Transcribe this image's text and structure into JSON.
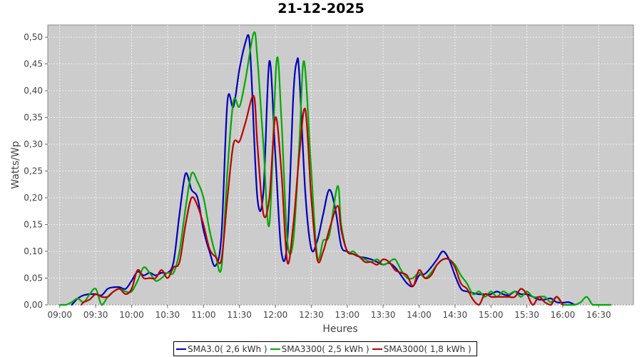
{
  "chart_data": {
    "type": "line",
    "title": "21-12-2025",
    "xlabel": "Heures",
    "ylabel": "Watts/Wp",
    "xlim": [
      "08:50",
      "16:59"
    ],
    "ylim": [
      0,
      0.5227
    ],
    "grid": true,
    "legend_position": "bottom",
    "x_ticks": [
      "09:00",
      "09:30",
      "10:00",
      "10:30",
      "11:00",
      "11:30",
      "12:00",
      "12:30",
      "13:00",
      "13:30",
      "14:00",
      "14:30",
      "15:00",
      "15:30",
      "16:00",
      "16:30"
    ],
    "y_ticks": [
      0,
      0.05,
      0.1,
      0.15,
      0.2,
      0.25,
      0.3,
      0.35,
      0.4,
      0.45,
      0.5
    ],
    "y_tick_labels": [
      "0,00",
      "0,05",
      "0,10",
      "0,15",
      "0,20",
      "0,25",
      "0,30",
      "0,35",
      "0,40",
      "0,45",
      "0,50"
    ],
    "colors": {
      "plot_background": "#cccccc",
      "grid": "#eeeeee"
    },
    "series": [
      {
        "name": "SMA3.0( 2,6 kWh )",
        "color": "#0000bb",
        "points": [
          [
            "09:10",
            0
          ],
          [
            "09:15",
            0.012
          ],
          [
            "09:20",
            0.018
          ],
          [
            "09:25",
            0.02
          ],
          [
            "09:30",
            0.02
          ],
          [
            "09:35",
            0.018
          ],
          [
            "09:40",
            0.03
          ],
          [
            "09:45",
            0.033
          ],
          [
            "09:50",
            0.033
          ],
          [
            "09:55",
            0.03
          ],
          [
            "10:00",
            0.045
          ],
          [
            "10:05",
            0.062
          ],
          [
            "10:10",
            0.055
          ],
          [
            "10:15",
            0.06
          ],
          [
            "10:20",
            0.055
          ],
          [
            "10:25",
            0.06
          ],
          [
            "10:30",
            0.06
          ],
          [
            "10:35",
            0.08
          ],
          [
            "10:40",
            0.17
          ],
          [
            "10:45",
            0.245
          ],
          [
            "10:50",
            0.215
          ],
          [
            "10:55",
            0.2
          ],
          [
            "11:00",
            0.14
          ],
          [
            "11:05",
            0.1
          ],
          [
            "11:10",
            0.073
          ],
          [
            "11:15",
            0.13
          ],
          [
            "11:20",
            0.38
          ],
          [
            "11:25",
            0.37
          ],
          [
            "11:30",
            0.44
          ],
          [
            "11:35",
            0.49
          ],
          [
            "11:38",
            0.5
          ],
          [
            "11:40",
            0.43
          ],
          [
            "11:45",
            0.2
          ],
          [
            "11:50",
            0.21
          ],
          [
            "11:55",
            0.455
          ],
          [
            "12:00",
            0.28
          ],
          [
            "12:05",
            0.1
          ],
          [
            "12:10",
            0.12
          ],
          [
            "12:15",
            0.39
          ],
          [
            "12:18",
            0.455
          ],
          [
            "12:20",
            0.43
          ],
          [
            "12:25",
            0.21
          ],
          [
            "12:30",
            0.105
          ],
          [
            "12:35",
            0.12
          ],
          [
            "12:40",
            0.17
          ],
          [
            "12:45",
            0.215
          ],
          [
            "12:50",
            0.18
          ],
          [
            "12:55",
            0.11
          ],
          [
            "13:00",
            0.1
          ],
          [
            "13:05",
            0.095
          ],
          [
            "13:10",
            0.09
          ],
          [
            "13:15",
            0.088
          ],
          [
            "13:20",
            0.085
          ],
          [
            "13:25",
            0.08
          ],
          [
            "13:30",
            0.075
          ],
          [
            "13:35",
            0.078
          ],
          [
            "13:40",
            0.07
          ],
          [
            "13:45",
            0.055
          ],
          [
            "13:50",
            0.04
          ],
          [
            "13:55",
            0.035
          ],
          [
            "14:00",
            0.055
          ],
          [
            "14:05",
            0.058
          ],
          [
            "14:10",
            0.07
          ],
          [
            "14:15",
            0.085
          ],
          [
            "14:20",
            0.1
          ],
          [
            "14:25",
            0.085
          ],
          [
            "14:30",
            0.055
          ],
          [
            "14:35",
            0.03
          ],
          [
            "14:40",
            0.025
          ],
          [
            "14:45",
            0.022
          ],
          [
            "14:50",
            0.02
          ],
          [
            "14:55",
            0.02
          ],
          [
            "15:00",
            0.02
          ],
          [
            "15:05",
            0.025
          ],
          [
            "15:10",
            0.02
          ],
          [
            "15:15",
            0.018
          ],
          [
            "15:20",
            0.025
          ],
          [
            "15:25",
            0.02
          ],
          [
            "15:30",
            0.02
          ],
          [
            "15:35",
            0.015
          ],
          [
            "15:40",
            0.01
          ],
          [
            "15:45",
            0.01
          ],
          [
            "15:50",
            0.012
          ],
          [
            "15:55",
            0.005
          ],
          [
            "16:00",
            0.004
          ],
          [
            "16:05",
            0.005
          ],
          [
            "16:10",
            0
          ]
        ]
      },
      {
        "name": "SMA3300( 2,5 kWh )",
        "color": "#00aa00",
        "points": [
          [
            "09:00",
            0
          ],
          [
            "09:05",
            0
          ],
          [
            "09:10",
            0.005
          ],
          [
            "09:15",
            0.012
          ],
          [
            "09:20",
            0.005
          ],
          [
            "09:25",
            0.02
          ],
          [
            "09:30",
            0.03
          ],
          [
            "09:35",
            0.0
          ],
          [
            "09:40",
            0.015
          ],
          [
            "09:45",
            0.025
          ],
          [
            "09:50",
            0.03
          ],
          [
            "09:55",
            0.025
          ],
          [
            "10:00",
            0.025
          ],
          [
            "10:05",
            0.045
          ],
          [
            "10:10",
            0.07
          ],
          [
            "10:15",
            0.06
          ],
          [
            "10:20",
            0.045
          ],
          [
            "10:25",
            0.05
          ],
          [
            "10:30",
            0.06
          ],
          [
            "10:35",
            0.06
          ],
          [
            "10:40",
            0.1
          ],
          [
            "10:45",
            0.18
          ],
          [
            "10:50",
            0.245
          ],
          [
            "10:55",
            0.23
          ],
          [
            "11:00",
            0.2
          ],
          [
            "11:05",
            0.14
          ],
          [
            "11:10",
            0.095
          ],
          [
            "11:15",
            0.07
          ],
          [
            "11:20",
            0.25
          ],
          [
            "11:25",
            0.38
          ],
          [
            "11:30",
            0.37
          ],
          [
            "11:35",
            0.42
          ],
          [
            "11:42",
            0.508
          ],
          [
            "11:45",
            0.46
          ],
          [
            "11:50",
            0.3
          ],
          [
            "11:55",
            0.15
          ],
          [
            "12:01",
            0.455
          ],
          [
            "12:05",
            0.35
          ],
          [
            "12:10",
            0.12
          ],
          [
            "12:15",
            0.12
          ],
          [
            "12:20",
            0.3
          ],
          [
            "12:24",
            0.455
          ],
          [
            "12:30",
            0.25
          ],
          [
            "12:35",
            0.09
          ],
          [
            "12:40",
            0.12
          ],
          [
            "12:45",
            0.13
          ],
          [
            "12:52",
            0.222
          ],
          [
            "12:55",
            0.15
          ],
          [
            "13:00",
            0.1
          ],
          [
            "13:05",
            0.1
          ],
          [
            "13:10",
            0.09
          ],
          [
            "13:15",
            0.085
          ],
          [
            "13:20",
            0.08
          ],
          [
            "13:25",
            0.085
          ],
          [
            "13:30",
            0.075
          ],
          [
            "13:35",
            0.08
          ],
          [
            "13:40",
            0.085
          ],
          [
            "13:45",
            0.065
          ],
          [
            "13:50",
            0.05
          ],
          [
            "13:55",
            0.05
          ],
          [
            "14:00",
            0.06
          ],
          [
            "14:05",
            0.05
          ],
          [
            "14:10",
            0.06
          ],
          [
            "14:15",
            0.075
          ],
          [
            "14:20",
            0.085
          ],
          [
            "14:25",
            0.085
          ],
          [
            "14:30",
            0.075
          ],
          [
            "14:35",
            0.055
          ],
          [
            "14:40",
            0.04
          ],
          [
            "14:45",
            0.02
          ],
          [
            "14:50",
            0.025
          ],
          [
            "14:55",
            0.015
          ],
          [
            "15:00",
            0.025
          ],
          [
            "15:05",
            0.015
          ],
          [
            "15:10",
            0.025
          ],
          [
            "15:15",
            0.02
          ],
          [
            "15:20",
            0.025
          ],
          [
            "15:25",
            0.015
          ],
          [
            "15:30",
            0.025
          ],
          [
            "15:35",
            0.015
          ],
          [
            "15:40",
            0.015
          ],
          [
            "15:45",
            0.015
          ],
          [
            "15:50",
            0.005
          ],
          [
            "15:55",
            0.015
          ],
          [
            "16:00",
            0
          ],
          [
            "16:05",
            0
          ],
          [
            "16:10",
            0
          ],
          [
            "16:15",
            0.005
          ],
          [
            "16:20",
            0.015
          ],
          [
            "16:25",
            0
          ],
          [
            "16:30",
            0
          ],
          [
            "16:35",
            0
          ],
          [
            "16:40",
            0
          ]
        ]
      },
      {
        "name": "SMA3000( 1,8 kWh )",
        "color": "#bb0000",
        "points": [
          [
            "09:18",
            0
          ],
          [
            "09:20",
            0.005
          ],
          [
            "09:25",
            0.01
          ],
          [
            "09:30",
            0.02
          ],
          [
            "09:35",
            0.015
          ],
          [
            "09:40",
            0.015
          ],
          [
            "09:45",
            0.025
          ],
          [
            "09:50",
            0.03
          ],
          [
            "09:55",
            0.02
          ],
          [
            "10:00",
            0.03
          ],
          [
            "10:05",
            0.065
          ],
          [
            "10:10",
            0.05
          ],
          [
            "10:15",
            0.05
          ],
          [
            "10:20",
            0.05
          ],
          [
            "10:25",
            0.065
          ],
          [
            "10:30",
            0.05
          ],
          [
            "10:35",
            0.07
          ],
          [
            "10:40",
            0.08
          ],
          [
            "10:45",
            0.15
          ],
          [
            "10:50",
            0.2
          ],
          [
            "10:55",
            0.185
          ],
          [
            "11:00",
            0.15
          ],
          [
            "11:05",
            0.105
          ],
          [
            "11:10",
            0.09
          ],
          [
            "11:15",
            0.085
          ],
          [
            "11:20",
            0.2
          ],
          [
            "11:25",
            0.3
          ],
          [
            "11:30",
            0.305
          ],
          [
            "11:35",
            0.34
          ],
          [
            "11:42",
            0.39
          ],
          [
            "11:45",
            0.3
          ],
          [
            "11:50",
            0.17
          ],
          [
            "11:55",
            0.2
          ],
          [
            "12:00",
            0.35
          ],
          [
            "12:05",
            0.25
          ],
          [
            "12:10",
            0.08
          ],
          [
            "12:15",
            0.15
          ],
          [
            "12:20",
            0.28
          ],
          [
            "12:25",
            0.365
          ],
          [
            "12:30",
            0.2
          ],
          [
            "12:35",
            0.085
          ],
          [
            "12:40",
            0.1
          ],
          [
            "12:45",
            0.14
          ],
          [
            "12:52",
            0.185
          ],
          [
            "12:55",
            0.14
          ],
          [
            "13:00",
            0.1
          ],
          [
            "13:05",
            0.095
          ],
          [
            "13:10",
            0.09
          ],
          [
            "13:15",
            0.08
          ],
          [
            "13:20",
            0.08
          ],
          [
            "13:25",
            0.075
          ],
          [
            "13:30",
            0.085
          ],
          [
            "13:35",
            0.08
          ],
          [
            "13:40",
            0.065
          ],
          [
            "13:45",
            0.06
          ],
          [
            "13:50",
            0.055
          ],
          [
            "13:55",
            0.035
          ],
          [
            "14:00",
            0.065
          ],
          [
            "14:05",
            0.05
          ],
          [
            "14:10",
            0.055
          ],
          [
            "14:15",
            0.075
          ],
          [
            "14:20",
            0.085
          ],
          [
            "14:25",
            0.085
          ],
          [
            "14:30",
            0.07
          ],
          [
            "14:35",
            0.04
          ],
          [
            "14:40",
            0.03
          ],
          [
            "14:45",
            0.01
          ],
          [
            "14:50",
            0.0
          ],
          [
            "14:55",
            0.02
          ],
          [
            "15:00",
            0.015
          ],
          [
            "15:05",
            0.015
          ],
          [
            "15:10",
            0.015
          ],
          [
            "15:15",
            0.015
          ],
          [
            "15:20",
            0.015
          ],
          [
            "15:25",
            0.03
          ],
          [
            "15:30",
            0.02
          ],
          [
            "15:35",
            0.0
          ],
          [
            "15:40",
            0.015
          ],
          [
            "15:45",
            0.005
          ],
          [
            "15:50",
            0.0
          ],
          [
            "15:55",
            0.015
          ],
          [
            "16:00",
            0
          ]
        ]
      }
    ]
  }
}
